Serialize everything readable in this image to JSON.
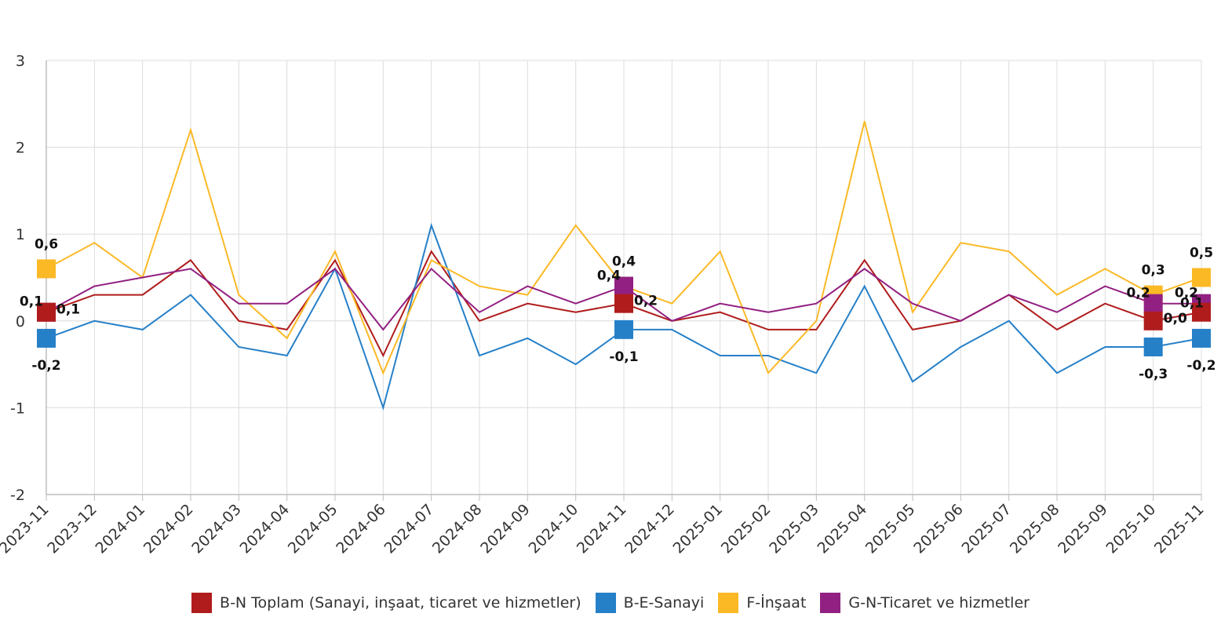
{
  "chart_data": {
    "type": "line",
    "title": "",
    "xlabel": "",
    "ylabel": "",
    "ylim": [
      -2,
      3
    ],
    "yticks": [
      "-2",
      "-1",
      "0",
      "1",
      "2",
      "3"
    ],
    "grid": true,
    "legend_position": "bottom-center",
    "categories": [
      "2023-11",
      "2023-12",
      "2024-01",
      "2024-02",
      "2024-03",
      "2024-04",
      "2024-05",
      "2024-06",
      "2024-07",
      "2024-08",
      "2024-09",
      "2024-10",
      "2024-11",
      "2024-12",
      "2025-01",
      "2025-02",
      "2025-03",
      "2025-04",
      "2025-05",
      "2025-06",
      "2025-07",
      "2025-08",
      "2025-09",
      "2025-10",
      "2025-11"
    ],
    "series": [
      {
        "name": "B-N Toplam (Sanayi, inşaat, ticaret ve hizmetler)",
        "color": "#b01c1c",
        "values": [
          0.1,
          0.3,
          0.3,
          0.7,
          0.0,
          -0.1,
          0.7,
          -0.4,
          0.8,
          0.0,
          0.2,
          0.1,
          0.2,
          0.0,
          0.1,
          -0.1,
          -0.1,
          0.7,
          -0.1,
          0.0,
          0.3,
          -0.1,
          0.2,
          0.0,
          0.1
        ],
        "labels": [
          {
            "index": 0,
            "text": "0,1",
            "pos": "right"
          },
          {
            "index": 12,
            "text": "0,2",
            "pos": "right"
          },
          {
            "index": 23,
            "text": "0,0",
            "pos": "right"
          },
          {
            "index": 24,
            "text": "0,1",
            "pos": "above-left"
          }
        ]
      },
      {
        "name": "B-E-Sanayi",
        "color": "#2680c8",
        "values": [
          -0.2,
          0.0,
          -0.1,
          0.3,
          -0.3,
          -0.4,
          0.6,
          -1.0,
          1.1,
          -0.4,
          -0.2,
          -0.5,
          -0.1,
          -0.1,
          -0.4,
          -0.4,
          -0.6,
          0.4,
          -0.7,
          -0.3,
          0.0,
          -0.6,
          -0.3,
          -0.3,
          -0.2
        ],
        "labels": [
          {
            "index": 0,
            "text": "-0,2",
            "pos": "below"
          },
          {
            "index": 12,
            "text": "-0,1",
            "pos": "below"
          },
          {
            "index": 23,
            "text": "-0,3",
            "pos": "below"
          },
          {
            "index": 24,
            "text": "-0,2",
            "pos": "below"
          }
        ]
      },
      {
        "name": "F-İnşaat",
        "color": "#fbb926",
        "values": [
          0.6,
          0.9,
          0.5,
          2.2,
          0.3,
          -0.2,
          0.8,
          -0.6,
          0.7,
          0.4,
          0.3,
          1.1,
          0.4,
          0.2,
          0.8,
          -0.6,
          0.0,
          2.3,
          0.1,
          0.9,
          0.8,
          0.3,
          0.6,
          0.3,
          0.5
        ],
        "labels": [
          {
            "index": 0,
            "text": "0,6",
            "pos": "above"
          },
          {
            "index": 12,
            "text": "0,4",
            "pos": "above"
          },
          {
            "index": 23,
            "text": "0,3",
            "pos": "above"
          },
          {
            "index": 24,
            "text": "0,5",
            "pos": "above"
          }
        ]
      },
      {
        "name": "G-N-Ticaret ve hizmetler",
        "color": "#922082",
        "values": [
          0.1,
          0.4,
          0.5,
          0.6,
          0.2,
          0.2,
          0.6,
          -0.1,
          0.6,
          0.1,
          0.4,
          0.2,
          0.4,
          0.0,
          0.2,
          0.1,
          0.2,
          0.6,
          0.2,
          0.0,
          0.3,
          0.1,
          0.4,
          0.2,
          0.2
        ],
        "labels": [
          {
            "index": 0,
            "text": "0,1",
            "pos": "left"
          },
          {
            "index": 12,
            "text": "0,4",
            "pos": "left"
          },
          {
            "index": 23,
            "text": "0,2",
            "pos": "left"
          },
          {
            "index": 24,
            "text": "0,2",
            "pos": "left"
          }
        ]
      }
    ]
  }
}
